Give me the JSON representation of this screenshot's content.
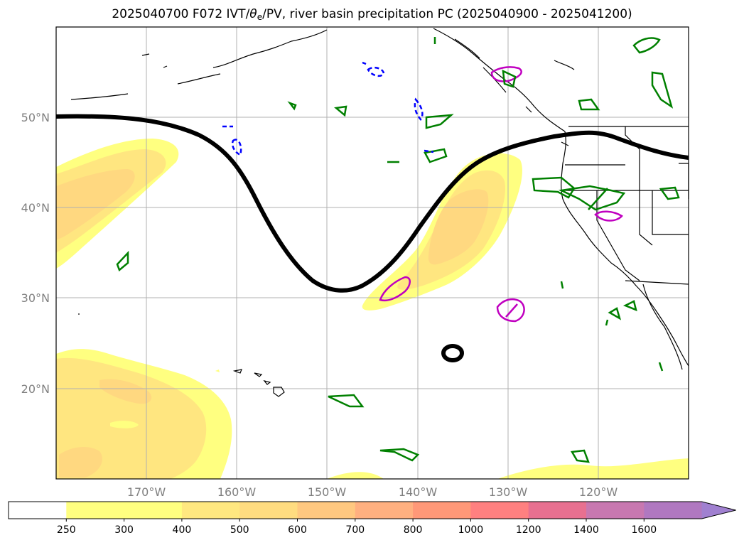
{
  "title": {
    "prefix": "2025040700 F072 IVT/",
    "theta": "θ",
    "theta_sub": "e",
    "suffix": "/PV, river basin precipitation PC (2025040900 - 2025041200)"
  },
  "map": {
    "lat_labels": [
      "50°N",
      "40°N",
      "30°N",
      "20°N"
    ],
    "lon_labels": [
      "170°W",
      "160°W",
      "150°W",
      "140°W",
      "130°W",
      "120°W"
    ],
    "grid": true,
    "colors": {
      "coastline": "#000000",
      "pv_contour": "#000000",
      "green_contour": "#008000",
      "magenta_contour": "#c000c0",
      "blue_dashed": "#0000ff",
      "ivt_250": "#ffff80",
      "ivt_300": "#ffe580",
      "ivt_400": "#ffd580"
    }
  },
  "colorbar": {
    "levels": [
      "250",
      "300",
      "400",
      "500",
      "600",
      "700",
      "800",
      "1000",
      "1200",
      "1400",
      "1600"
    ],
    "colors": [
      "#ffffff",
      "#ffff80",
      "#ffff80",
      "#ffe880",
      "#ffdc80",
      "#ffc880",
      "#ffb080",
      "#ff9878",
      "#ff8080",
      "#e87090",
      "#c878b0",
      "#b078c0",
      "#a080d0"
    ],
    "extend": "max"
  }
}
